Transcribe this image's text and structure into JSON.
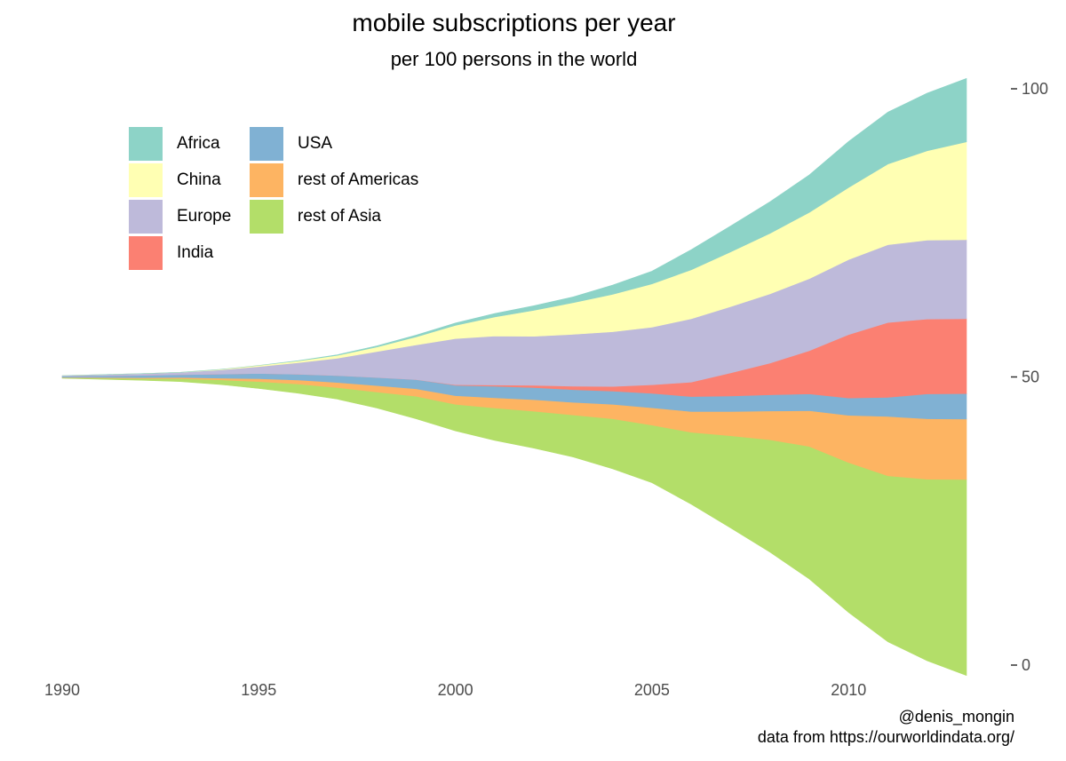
{
  "chart_data": {
    "type": "area",
    "subtype": "streamgraph",
    "title": "mobile subscriptions per year",
    "subtitle": "per 100 persons in the world",
    "xlabel": "",
    "ylabel": "",
    "xlim": [
      1990,
      2013
    ],
    "ylim": [
      0,
      100
    ],
    "x_ticks": [
      1990,
      1995,
      2000,
      2005,
      2010
    ],
    "y_ticks": [
      0,
      50,
      100
    ],
    "y_axis_position": "right",
    "grid": false,
    "legend_position": "top-left",
    "x": [
      1990,
      1991,
      1992,
      1993,
      1994,
      1995,
      1996,
      1997,
      1998,
      1999,
      2000,
      2001,
      2002,
      2003,
      2004,
      2005,
      2006,
      2007,
      2008,
      2009,
      2010,
      2011,
      2012,
      2013
    ],
    "series_order_bottom_to_top": [
      "rest of Asia",
      "rest of Americas",
      "USA",
      "India",
      "Europe",
      "China",
      "Africa"
    ],
    "series": [
      {
        "name": "Africa",
        "color": "#8dd3c7",
        "values": [
          0,
          0,
          0,
          0,
          0,
          0,
          0.05,
          0.1,
          0.2,
          0.3,
          0.4,
          0.6,
          0.8,
          1.0,
          1.6,
          2.2,
          3.5,
          4.5,
          5.5,
          6.5,
          8,
          9,
          10,
          11
        ]
      },
      {
        "name": "China",
        "color": "#ffffb3",
        "values": [
          0,
          0,
          0,
          0,
          0.1,
          0.2,
          0.3,
          0.5,
          0.8,
          1.4,
          2.3,
          3.3,
          4.5,
          5.5,
          6.5,
          7.5,
          8.5,
          9.5,
          10.5,
          11.5,
          12.5,
          14,
          15.5,
          17
        ]
      },
      {
        "name": "Europe",
        "color": "#bebada",
        "values": [
          0.1,
          0.2,
          0.3,
          0.4,
          0.7,
          1.2,
          2.0,
          3.0,
          4.5,
          6.0,
          8.0,
          8.5,
          8.5,
          9.0,
          9.5,
          10.0,
          11,
          11.5,
          12,
          12.5,
          13,
          13.5,
          13.7,
          13.7
        ]
      },
      {
        "name": "India",
        "color": "#fb8072",
        "values": [
          0,
          0,
          0,
          0,
          0,
          0,
          0,
          0,
          0,
          0,
          0.1,
          0.2,
          0.4,
          0.6,
          0.8,
          1.5,
          2.5,
          4,
          5.5,
          7.5,
          11,
          13,
          13,
          13
        ]
      },
      {
        "name": "USA",
        "color": "#80b1d3",
        "values": [
          0.2,
          0.3,
          0.4,
          0.5,
          0.7,
          0.9,
          1.0,
          1.2,
          1.4,
          1.6,
          1.8,
          2.0,
          2.1,
          2.2,
          2.3,
          2.5,
          2.6,
          2.7,
          2.8,
          2.9,
          3,
          3.3,
          4.3,
          4.4
        ]
      },
      {
        "name": "rest of Americas",
        "color": "#fdb462",
        "values": [
          0.05,
          0.1,
          0.15,
          0.2,
          0.3,
          0.5,
          0.7,
          0.9,
          1.1,
          1.3,
          1.5,
          1.8,
          2.0,
          2.2,
          2.5,
          3,
          3.6,
          4.2,
          5,
          6.2,
          8.2,
          10.3,
          10.5,
          10.5
        ]
      },
      {
        "name": "rest of Asia",
        "color": "#b3de69",
        "values": [
          0.1,
          0.2,
          0.3,
          0.5,
          0.8,
          1.2,
          1.6,
          2.0,
          2.8,
          3.9,
          4.6,
          5.6,
          6.4,
          7.3,
          8.7,
          10,
          12.5,
          16,
          19.5,
          23,
          26,
          28.8,
          31.5,
          34
        ]
      }
    ]
  },
  "legend": {
    "items": [
      {
        "label": "Africa",
        "color": "#8dd3c7"
      },
      {
        "label": "China",
        "color": "#ffffb3"
      },
      {
        "label": "Europe",
        "color": "#bebada"
      },
      {
        "label": "India",
        "color": "#fb8072"
      },
      {
        "label": "USA",
        "color": "#80b1d3"
      },
      {
        "label": "rest of Americas",
        "color": "#fdb462"
      },
      {
        "label": "rest of Asia",
        "color": "#b3de69"
      }
    ]
  },
  "caption": {
    "author": "@denis_mongin",
    "source": "data from https://ourworldindata.org/"
  }
}
